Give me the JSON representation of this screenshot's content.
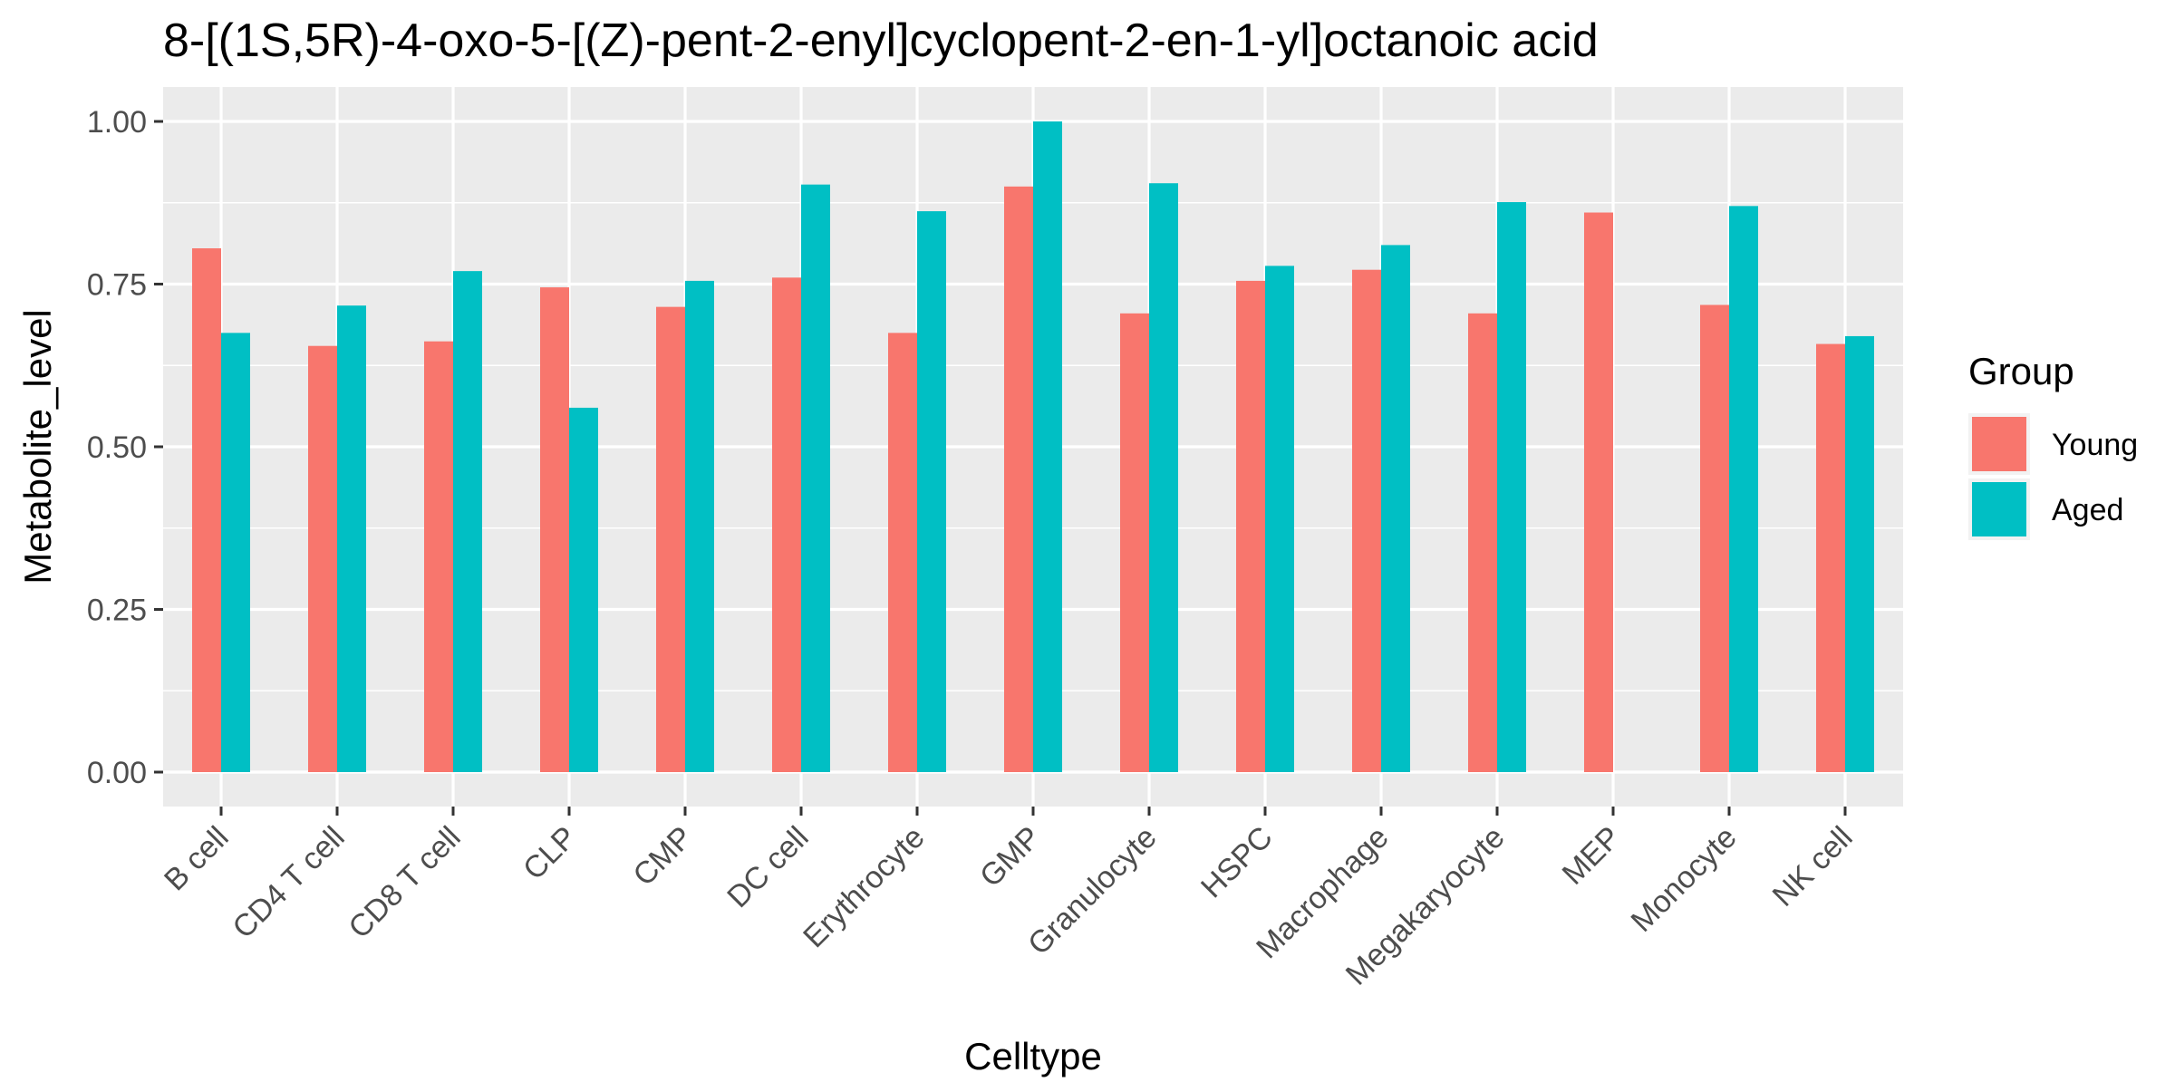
{
  "chart_data": {
    "type": "bar",
    "title": "8-[(1S,5R)-4-oxo-5-[(Z)-pent-2-enyl]cyclopent-2-en-1-yl]octanoic acid",
    "xlabel": "Celltype",
    "ylabel": "Metabolite_level",
    "ylim": [
      0,
      1.05
    ],
    "yticks": [
      "0.00",
      "0.25",
      "0.50",
      "0.75",
      "1.00"
    ],
    "grid": true,
    "legend": {
      "title": "Group",
      "placement": "right",
      "entries": [
        "Young",
        "Aged"
      ]
    },
    "categories": [
      "B cell",
      "CD4 T cell",
      "CD8 T cell",
      "CLP",
      "CMP",
      "DC cell",
      "Erythrocyte",
      "GMP",
      "Granulocyte",
      "HSPC",
      "Macrophage",
      "Megakaryocyte",
      "MEP",
      "Monocyte",
      "NK cell"
    ],
    "series": [
      {
        "name": "Young",
        "color": "#F8766D",
        "values": [
          0.805,
          0.655,
          0.662,
          0.745,
          0.715,
          0.76,
          0.675,
          0.9,
          0.705,
          0.755,
          0.772,
          0.705,
          0.86,
          0.718,
          0.658
        ]
      },
      {
        "name": "Aged",
        "color": "#00BFC4",
        "values": [
          0.675,
          0.717,
          0.77,
          0.56,
          0.755,
          0.903,
          0.862,
          1.0,
          0.905,
          0.778,
          0.81,
          0.876,
          null,
          0.87,
          0.67
        ]
      }
    ]
  }
}
